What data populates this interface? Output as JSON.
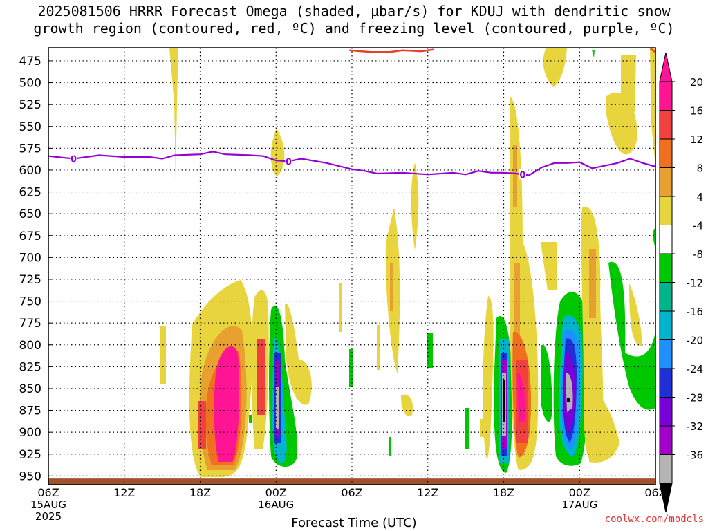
{
  "title_line1": "2025081506 HRRR Forecast Omega (shaded, µbar/s) for KDUJ with dendritic snow",
  "title_line2": "growth region (contoured, red, ºC) and freezing level (contoured, purple, ºC)",
  "credit": "coolwx.com/models",
  "chart_data": {
    "type": "heatmap",
    "xlabel": "Forecast Time (UTC)",
    "x_ticks": [
      {
        "label": "06Z",
        "hours": 0,
        "date": "15AUG",
        "year": "2025"
      },
      {
        "label": "12Z",
        "hours": 6
      },
      {
        "label": "18Z",
        "hours": 12
      },
      {
        "label": "00Z",
        "hours": 18,
        "date": "16AUG"
      },
      {
        "label": "06Z",
        "hours": 24
      },
      {
        "label": "12Z",
        "hours": 30
      },
      {
        "label": "18Z",
        "hours": 36
      },
      {
        "label": "00Z",
        "hours": 42,
        "date": "17AUG"
      },
      {
        "label": "06Z",
        "hours": 48
      }
    ],
    "xlim": [
      0,
      48
    ],
    "ylim": [
      960,
      460
    ],
    "y_ticks": [
      475,
      500,
      525,
      550,
      575,
      600,
      625,
      650,
      675,
      700,
      725,
      750,
      775,
      800,
      825,
      850,
      875,
      900,
      925,
      950
    ],
    "grid": true,
    "colorbar": {
      "position": "right",
      "labels": [
        "20",
        "16",
        "12",
        "8",
        "4",
        "-4",
        "-8",
        "-12",
        "-16",
        "-20",
        "-24",
        "-28",
        "-32",
        "-36"
      ],
      "bins": [
        {
          "from": 20,
          "to": 24,
          "color": "#ff1493"
        },
        {
          "from": 16,
          "to": 20,
          "color": "#f04040"
        },
        {
          "from": 12,
          "to": 16,
          "color": "#f07020"
        },
        {
          "from": 8,
          "to": 12,
          "color": "#e8a030"
        },
        {
          "from": 4,
          "to": 8,
          "color": "#e8d43c"
        },
        {
          "from": -4,
          "to": 4,
          "color": "#ffffff"
        },
        {
          "from": -8,
          "to": -4,
          "color": "#00c800"
        },
        {
          "from": -12,
          "to": -8,
          "color": "#00b48c"
        },
        {
          "from": -16,
          "to": -12,
          "color": "#00b4d0"
        },
        {
          "from": -20,
          "to": -16,
          "color": "#1e90ff"
        },
        {
          "from": -24,
          "to": -20,
          "color": "#2030d8"
        },
        {
          "from": -28,
          "to": -24,
          "color": "#7a00d8"
        },
        {
          "from": -32,
          "to": -28,
          "color": "#a000c8"
        },
        {
          "from": -36,
          "to": -32,
          "color": "#b4b4b4"
        }
      ],
      "top_arrow_color": "#ff1493",
      "bottom_arrow_color": "#000000"
    },
    "freezing_level": {
      "color": "#9400d3",
      "value_label": "0",
      "points": [
        [
          0,
          584
        ],
        [
          2,
          587
        ],
        [
          4,
          583
        ],
        [
          6,
          585
        ],
        [
          8,
          585
        ],
        [
          9,
          587
        ],
        [
          10,
          583
        ],
        [
          12,
          582
        ],
        [
          13,
          579
        ],
        [
          14,
          582
        ],
        [
          16,
          583
        ],
        [
          17,
          584
        ],
        [
          18,
          589
        ],
        [
          19,
          590
        ],
        [
          20,
          587
        ],
        [
          22,
          592
        ],
        [
          24,
          599
        ],
        [
          25,
          601
        ],
        [
          26,
          604
        ],
        [
          28,
          603
        ],
        [
          30,
          605
        ],
        [
          32,
          603
        ],
        [
          33,
          605
        ],
        [
          34,
          601
        ],
        [
          35,
          603
        ],
        [
          36,
          603
        ],
        [
          37,
          604
        ],
        [
          38,
          606
        ],
        [
          39,
          597
        ],
        [
          40,
          592
        ],
        [
          41,
          592
        ],
        [
          42,
          591
        ],
        [
          43,
          598
        ],
        [
          44,
          595
        ],
        [
          45,
          592
        ],
        [
          46,
          587
        ],
        [
          47,
          592
        ],
        [
          48,
          596
        ]
      ],
      "label_hours": [
        2,
        19,
        37.5
      ]
    },
    "dgz_contour": {
      "color": "#e8402c",
      "segments": [
        [
          [
            23.8,
            463
          ],
          [
            25.5,
            465
          ],
          [
            27,
            465
          ],
          [
            28,
            463
          ],
          [
            29.5,
            464
          ],
          [
            30.5,
            462
          ]
        ],
        [
          [
            47.6,
            461
          ],
          [
            48,
            465
          ]
        ]
      ]
    },
    "terrain": {
      "color": "#a0522d",
      "top_hpa": 953
    }
  }
}
